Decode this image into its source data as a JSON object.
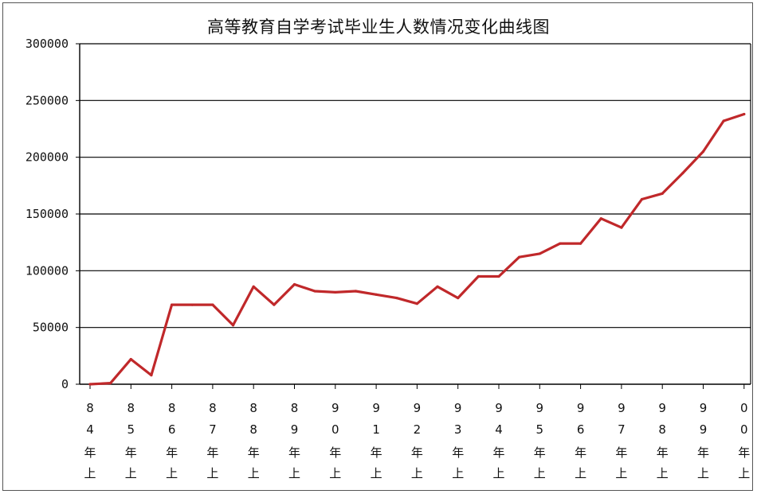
{
  "chart_data": {
    "type": "line",
    "title": "高等教育自学考试毕业生人数情况变化曲线图",
    "xlabel": "",
    "ylabel": "",
    "ylim": [
      0,
      300000
    ],
    "yticks": [
      "300000",
      "250000",
      "200000",
      "150000",
      "100000",
      "50000",
      "0"
    ],
    "categories": [
      "84年上",
      "85年上",
      "86年上",
      "87年上",
      "88年上",
      "89年上",
      "90年上",
      "91年上",
      "92年上",
      "93年上",
      "94年上",
      "95年上",
      "96年上",
      "97年上",
      "98年上",
      "99年上",
      "00年上"
    ],
    "category_label_lines": [
      [
        "8",
        "4",
        "年",
        "上"
      ],
      [
        "8",
        "5",
        "年",
        "上"
      ],
      [
        "8",
        "6",
        "年",
        "上"
      ],
      [
        "8",
        "7",
        "年",
        "上"
      ],
      [
        "8",
        "8",
        "年",
        "上"
      ],
      [
        "8",
        "9",
        "年",
        "上"
      ],
      [
        "9",
        "0",
        "年",
        "上"
      ],
      [
        "9",
        "1",
        "年",
        "上"
      ],
      [
        "9",
        "2",
        "年",
        "上"
      ],
      [
        "9",
        "3",
        "年",
        "上"
      ],
      [
        "9",
        "4",
        "年",
        "上"
      ],
      [
        "9",
        "5",
        "年",
        "上"
      ],
      [
        "9",
        "6",
        "年",
        "上"
      ],
      [
        "9",
        "7",
        "年",
        "上"
      ],
      [
        "9",
        "8",
        "年",
        "上"
      ],
      [
        "9",
        "9",
        "年",
        "上"
      ],
      [
        "0",
        "0",
        "年",
        "上"
      ]
    ],
    "grid": true,
    "line_color": "#c0282a",
    "series": [
      {
        "name": "",
        "x": [
          0,
          0.5,
          1,
          1.5,
          2,
          2.5,
          3,
          3.5,
          4,
          4.5,
          5,
          5.5,
          6,
          6.5,
          7,
          7.5,
          8,
          8.5,
          9,
          9.5,
          10,
          10.5,
          11,
          11.5,
          12,
          12.5,
          13,
          13.5,
          14,
          14.5,
          15,
          15.5,
          16
        ],
        "values": [
          0,
          1000,
          22000,
          8000,
          70000,
          70000,
          70000,
          52000,
          86000,
          70000,
          88000,
          82000,
          81000,
          82000,
          79000,
          76000,
          71000,
          86000,
          76000,
          95000,
          95000,
          112000,
          115000,
          124000,
          124000,
          146000,
          138000,
          163000,
          168000,
          186000,
          205000,
          232000,
          238000
        ]
      }
    ]
  }
}
